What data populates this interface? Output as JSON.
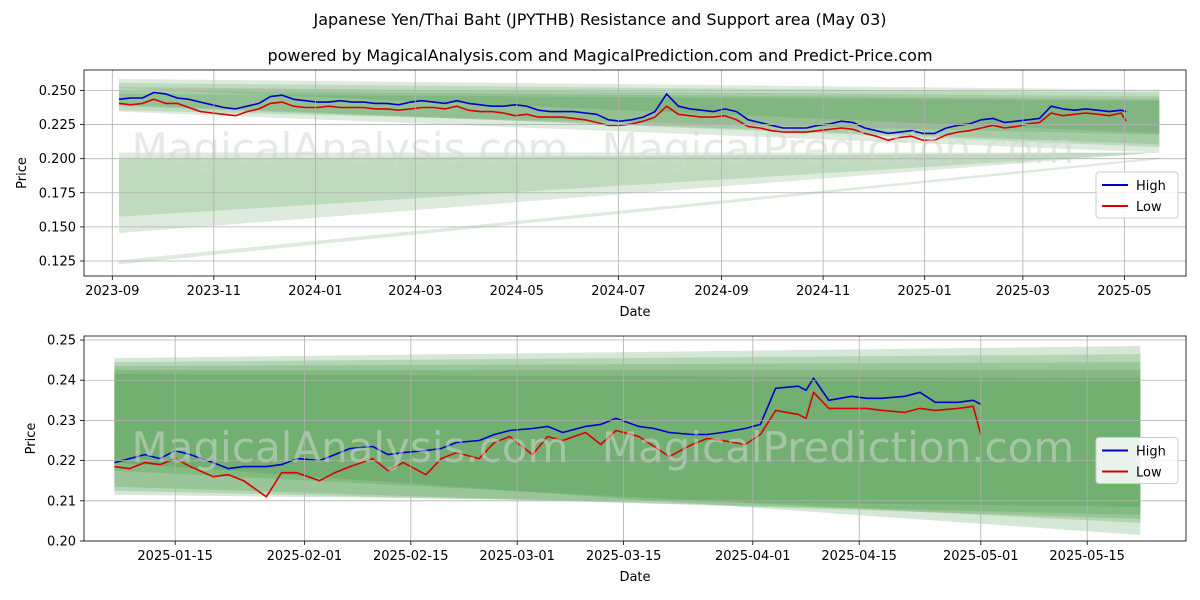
{
  "title": "Japanese Yen/Thai Baht (JPYTHB) Resistance and Support area (May 03)",
  "subtitle": "powered by MagicalAnalysis.com and MagicalPrediction.com and Predict-Price.com",
  "watermarks": [
    "MagicalAnalysis.com",
    "MagicalPrediction.com"
  ],
  "colors": {
    "high": "#0000cc",
    "low": "#dd0000",
    "band": "#2e8b2e",
    "grid": "#b0b0b0"
  },
  "chart_data": [
    {
      "type": "line",
      "xlabel": "Date",
      "ylabel": "Price",
      "grid": true,
      "legend_position": "center-right",
      "xlim": [
        "2023-08-15",
        "2025-06-07"
      ],
      "ylim": [
        0.114,
        0.265
      ],
      "x_ticks": [
        "2023-09",
        "2023-11",
        "2024-01",
        "2024-03",
        "2024-05",
        "2024-07",
        "2024-09",
        "2024-11",
        "2025-01",
        "2025-03",
        "2025-05"
      ],
      "y_ticks": [
        "0.125",
        "0.150",
        "0.175",
        "0.200",
        "0.225",
        "0.250"
      ],
      "bands": [
        {
          "x": [
            "2023-09-05",
            "2025-05-22"
          ],
          "upper": [
            0.2585,
            0.2505
          ],
          "lower": [
            0.2515,
            0.2185
          ]
        },
        {
          "x": [
            "2023-09-05",
            "2025-05-22"
          ],
          "upper": [
            0.2555,
            0.2485
          ],
          "lower": [
            0.2345,
            0.2045
          ]
        },
        {
          "x": [
            "2023-09-05",
            "2025-05-22"
          ],
          "upper": [
            0.2525,
            0.2455
          ],
          "lower": [
            0.2395,
            0.2085
          ]
        },
        {
          "x": [
            "2023-09-05",
            "2025-05-22"
          ],
          "upper": [
            0.25,
            0.2435
          ],
          "lower": [
            0.2385,
            0.2105
          ]
        },
        {
          "x": [
            "2023-09-05",
            "2025-05-22"
          ],
          "upper": [
            0.2475,
            0.2425
          ],
          "lower": [
            0.2355,
            0.2175
          ]
        },
        {
          "x": [
            "2023-09-05",
            "2025-05-22"
          ],
          "upper": [
            0.2045,
            0.2045
          ],
          "lower": [
            0.1575,
            0.2045
          ]
        },
        {
          "x": [
            "2023-09-05",
            "2025-05-22"
          ],
          "upper": [
            0.1995,
            0.2045
          ],
          "lower": [
            0.1455,
            0.2045
          ]
        },
        {
          "x": [
            "2023-09-05",
            "2025-05-22"
          ],
          "upper": [
            0.1255,
            0.201
          ],
          "lower": [
            0.1225,
            0.1995
          ]
        }
      ],
      "series": [
        {
          "name": "High",
          "x": [
            "2023-09-05",
            "2023-09-12",
            "2023-09-19",
            "2023-09-26",
            "2023-10-03",
            "2023-10-10",
            "2023-10-17",
            "2023-10-24",
            "2023-10-31",
            "2023-11-07",
            "2023-11-14",
            "2023-11-21",
            "2023-11-28",
            "2023-12-05",
            "2023-12-12",
            "2023-12-19",
            "2023-12-26",
            "2024-01-02",
            "2024-01-09",
            "2024-01-16",
            "2024-01-23",
            "2024-01-30",
            "2024-02-06",
            "2024-02-13",
            "2024-02-20",
            "2024-02-27",
            "2024-03-05",
            "2024-03-12",
            "2024-03-19",
            "2024-03-26",
            "2024-04-02",
            "2024-04-09",
            "2024-04-16",
            "2024-04-23",
            "2024-04-30",
            "2024-05-07",
            "2024-05-14",
            "2024-05-21",
            "2024-05-28",
            "2024-06-04",
            "2024-06-11",
            "2024-06-18",
            "2024-06-25",
            "2024-07-02",
            "2024-07-09",
            "2024-07-16",
            "2024-07-23",
            "2024-07-30",
            "2024-08-06",
            "2024-08-13",
            "2024-08-20",
            "2024-08-27",
            "2024-09-03",
            "2024-09-10",
            "2024-09-17",
            "2024-09-24",
            "2024-10-01",
            "2024-10-08",
            "2024-10-15",
            "2024-10-22",
            "2024-10-29",
            "2024-11-05",
            "2024-11-12",
            "2024-11-19",
            "2024-11-26",
            "2024-12-03",
            "2024-12-10",
            "2024-12-17",
            "2024-12-24",
            "2024-12-31",
            "2025-01-07",
            "2025-01-14",
            "2025-01-21",
            "2025-01-28",
            "2025-02-04",
            "2025-02-11",
            "2025-02-18",
            "2025-02-25",
            "2025-03-04",
            "2025-03-11",
            "2025-03-18",
            "2025-03-25",
            "2025-04-01",
            "2025-04-08",
            "2025-04-15",
            "2025-04-22",
            "2025-04-29",
            "2025-05-02"
          ],
          "values": [
            0.2435,
            0.2445,
            0.2445,
            0.2485,
            0.2475,
            0.2445,
            0.2435,
            0.2415,
            0.2395,
            0.2375,
            0.2365,
            0.2385,
            0.2405,
            0.2455,
            0.2465,
            0.2435,
            0.2425,
            0.2415,
            0.2415,
            0.2425,
            0.2415,
            0.2415,
            0.2405,
            0.2405,
            0.2395,
            0.2415,
            0.2425,
            0.2415,
            0.2405,
            0.2425,
            0.2405,
            0.2395,
            0.2385,
            0.2385,
            0.2395,
            0.2385,
            0.2355,
            0.2345,
            0.2345,
            0.2345,
            0.2335,
            0.2325,
            0.2285,
            0.2275,
            0.2285,
            0.2305,
            0.2345,
            0.2475,
            0.2385,
            0.2365,
            0.2355,
            0.2345,
            0.2365,
            0.2345,
            0.2285,
            0.2265,
            0.2245,
            0.2225,
            0.2225,
            0.2225,
            0.2245,
            0.2255,
            0.2275,
            0.2265,
            0.2225,
            0.2205,
            0.2185,
            0.2195,
            0.2205,
            0.2185,
            0.2185,
            0.2225,
            0.2245,
            0.2255,
            0.2285,
            0.2295,
            0.2265,
            0.2275,
            0.2285,
            0.2295,
            0.2385,
            0.2365,
            0.2355,
            0.2365,
            0.2355,
            0.2345,
            0.2355,
            0.2345
          ]
        },
        {
          "name": "Low",
          "x": [
            "2023-09-05",
            "2023-09-12",
            "2023-09-19",
            "2023-09-26",
            "2023-10-03",
            "2023-10-10",
            "2023-10-17",
            "2023-10-24",
            "2023-10-31",
            "2023-11-07",
            "2023-11-14",
            "2023-11-21",
            "2023-11-28",
            "2023-12-05",
            "2023-12-12",
            "2023-12-19",
            "2023-12-26",
            "2024-01-02",
            "2024-01-09",
            "2024-01-16",
            "2024-01-23",
            "2024-01-30",
            "2024-02-06",
            "2024-02-13",
            "2024-02-20",
            "2024-02-27",
            "2024-03-05",
            "2024-03-12",
            "2024-03-19",
            "2024-03-26",
            "2024-04-02",
            "2024-04-09",
            "2024-04-16",
            "2024-04-23",
            "2024-04-30",
            "2024-05-07",
            "2024-05-14",
            "2024-05-21",
            "2024-05-28",
            "2024-06-04",
            "2024-06-11",
            "2024-06-18",
            "2024-06-25",
            "2024-07-02",
            "2024-07-09",
            "2024-07-16",
            "2024-07-23",
            "2024-07-30",
            "2024-08-06",
            "2024-08-13",
            "2024-08-20",
            "2024-08-27",
            "2024-09-03",
            "2024-09-10",
            "2024-09-17",
            "2024-09-24",
            "2024-10-01",
            "2024-10-08",
            "2024-10-15",
            "2024-10-22",
            "2024-10-29",
            "2024-11-05",
            "2024-11-12",
            "2024-11-19",
            "2024-11-26",
            "2024-12-03",
            "2024-12-10",
            "2024-12-17",
            "2024-12-24",
            "2024-12-31",
            "2025-01-07",
            "2025-01-14",
            "2025-01-21",
            "2025-01-28",
            "2025-02-04",
            "2025-02-11",
            "2025-02-18",
            "2025-02-25",
            "2025-03-04",
            "2025-03-11",
            "2025-03-18",
            "2025-03-25",
            "2025-04-01",
            "2025-04-08",
            "2025-04-15",
            "2025-04-22",
            "2025-04-29",
            "2025-05-02"
          ],
          "values": [
            0.2405,
            0.2395,
            0.2405,
            0.2435,
            0.2405,
            0.2405,
            0.2375,
            0.2345,
            0.2335,
            0.2325,
            0.2315,
            0.2345,
            0.2365,
            0.2405,
            0.2415,
            0.2385,
            0.2375,
            0.2375,
            0.2385,
            0.2375,
            0.2375,
            0.2375,
            0.2365,
            0.2365,
            0.2355,
            0.2365,
            0.2375,
            0.2375,
            0.2365,
            0.2385,
            0.2355,
            0.2345,
            0.2345,
            0.2335,
            0.2315,
            0.2325,
            0.2305,
            0.2305,
            0.2305,
            0.2295,
            0.2285,
            0.2265,
            0.2245,
            0.2245,
            0.2255,
            0.2275,
            0.2305,
            0.2385,
            0.2325,
            0.2315,
            0.2305,
            0.2305,
            0.2315,
            0.2285,
            0.2235,
            0.2225,
            0.2205,
            0.2195,
            0.2195,
            0.2195,
            0.2205,
            0.2215,
            0.2225,
            0.2215,
            0.2185,
            0.2165,
            0.2135,
            0.2155,
            0.2165,
            0.2135,
            0.2135,
            0.2175,
            0.2195,
            0.2205,
            0.2225,
            0.2245,
            0.2225,
            0.2235,
            0.2255,
            0.2265,
            0.2335,
            0.2315,
            0.2325,
            0.2335,
            0.2325,
            0.2315,
            0.2335,
            0.2275
          ]
        }
      ]
    },
    {
      "type": "line",
      "xlabel": "Date",
      "ylabel": "Price",
      "grid": true,
      "legend_position": "center-right",
      "xlim": [
        "2025-01-03",
        "2025-05-28"
      ],
      "ylim": [
        0.2,
        0.251
      ],
      "x_ticks": [
        "2025-01-15",
        "2025-02-01",
        "2025-02-15",
        "2025-03-01",
        "2025-03-15",
        "2025-04-01",
        "2025-04-15",
        "2025-05-01",
        "2025-05-15"
      ],
      "y_ticks": [
        "0.20",
        "0.21",
        "0.22",
        "0.23",
        "0.24",
        "0.25"
      ],
      "bands": [
        {
          "x": [
            "2025-01-07",
            "2025-05-22"
          ],
          "upper": [
            0.2455,
            0.2485
          ],
          "lower": [
            0.2195,
            0.2015
          ]
        },
        {
          "x": [
            "2025-01-07",
            "2025-05-22"
          ],
          "upper": [
            0.2445,
            0.2465
          ],
          "lower": [
            0.2175,
            0.2045
          ]
        },
        {
          "x": [
            "2025-01-07",
            "2025-05-22"
          ],
          "upper": [
            0.2435,
            0.2445
          ],
          "lower": [
            0.2135,
            0.2055
          ]
        },
        {
          "x": [
            "2025-01-07",
            "2025-05-22"
          ],
          "upper": [
            0.2425,
            0.2425
          ],
          "lower": [
            0.2125,
            0.2065
          ]
        },
        {
          "x": [
            "2025-01-07",
            "2025-05-22"
          ],
          "upper": [
            0.2415,
            0.2405
          ],
          "lower": [
            0.2115,
            0.2085
          ]
        }
      ],
      "series": [
        {
          "name": "High",
          "x": [
            "2025-01-07",
            "2025-01-09",
            "2025-01-11",
            "2025-01-13",
            "2025-01-15",
            "2025-01-17",
            "2025-01-20",
            "2025-01-22",
            "2025-01-24",
            "2025-01-27",
            "2025-01-29",
            "2025-01-31",
            "2025-02-03",
            "2025-02-05",
            "2025-02-07",
            "2025-02-10",
            "2025-02-12",
            "2025-02-14",
            "2025-02-17",
            "2025-02-19",
            "2025-02-21",
            "2025-02-24",
            "2025-02-26",
            "2025-02-28",
            "2025-03-03",
            "2025-03-05",
            "2025-03-07",
            "2025-03-10",
            "2025-03-12",
            "2025-03-14",
            "2025-03-17",
            "2025-03-19",
            "2025-03-21",
            "2025-03-24",
            "2025-03-26",
            "2025-03-28",
            "2025-03-31",
            "2025-04-02",
            "2025-04-04",
            "2025-04-07",
            "2025-04-08",
            "2025-04-09",
            "2025-04-11",
            "2025-04-14",
            "2025-04-16",
            "2025-04-18",
            "2025-04-21",
            "2025-04-23",
            "2025-04-25",
            "2025-04-28",
            "2025-04-30",
            "2025-05-01"
          ],
          "values": [
            0.2195,
            0.2205,
            0.2215,
            0.2205,
            0.2225,
            0.2215,
            0.2195,
            0.218,
            0.2185,
            0.2185,
            0.219,
            0.2205,
            0.22,
            0.2215,
            0.223,
            0.2235,
            0.2215,
            0.222,
            0.2225,
            0.223,
            0.2245,
            0.225,
            0.2265,
            0.2275,
            0.228,
            0.2285,
            0.227,
            0.2285,
            0.229,
            0.2305,
            0.2285,
            0.228,
            0.227,
            0.2265,
            0.2265,
            0.227,
            0.228,
            0.229,
            0.238,
            0.2385,
            0.2375,
            0.2405,
            0.235,
            0.236,
            0.2355,
            0.2355,
            0.236,
            0.237,
            0.2345,
            0.2345,
            0.235,
            0.234
          ]
        },
        {
          "name": "Low",
          "x": [
            "2025-01-07",
            "2025-01-09",
            "2025-01-11",
            "2025-01-13",
            "2025-01-15",
            "2025-01-17",
            "2025-01-20",
            "2025-01-22",
            "2025-01-24",
            "2025-01-27",
            "2025-01-29",
            "2025-01-31",
            "2025-02-03",
            "2025-02-05",
            "2025-02-07",
            "2025-02-10",
            "2025-02-12",
            "2025-02-14",
            "2025-02-17",
            "2025-02-19",
            "2025-02-21",
            "2025-02-24",
            "2025-02-26",
            "2025-02-28",
            "2025-03-03",
            "2025-03-05",
            "2025-03-07",
            "2025-03-10",
            "2025-03-12",
            "2025-03-14",
            "2025-03-17",
            "2025-03-19",
            "2025-03-21",
            "2025-03-24",
            "2025-03-26",
            "2025-03-28",
            "2025-03-31",
            "2025-04-02",
            "2025-04-04",
            "2025-04-07",
            "2025-04-08",
            "2025-04-09",
            "2025-04-11",
            "2025-04-14",
            "2025-04-16",
            "2025-04-18",
            "2025-04-21",
            "2025-04-23",
            "2025-04-25",
            "2025-04-28",
            "2025-04-30",
            "2025-05-01"
          ],
          "values": [
            0.2185,
            0.218,
            0.2195,
            0.219,
            0.2205,
            0.2185,
            0.216,
            0.2165,
            0.215,
            0.211,
            0.217,
            0.217,
            0.215,
            0.217,
            0.2185,
            0.2205,
            0.2175,
            0.2195,
            0.2165,
            0.2205,
            0.222,
            0.2205,
            0.2245,
            0.226,
            0.2215,
            0.226,
            0.225,
            0.227,
            0.224,
            0.2275,
            0.226,
            0.2235,
            0.221,
            0.224,
            0.2255,
            0.225,
            0.224,
            0.2265,
            0.2325,
            0.2315,
            0.2305,
            0.237,
            0.233,
            0.233,
            0.233,
            0.2325,
            0.232,
            0.233,
            0.2325,
            0.233,
            0.2335,
            0.2265
          ]
        }
      ]
    }
  ]
}
